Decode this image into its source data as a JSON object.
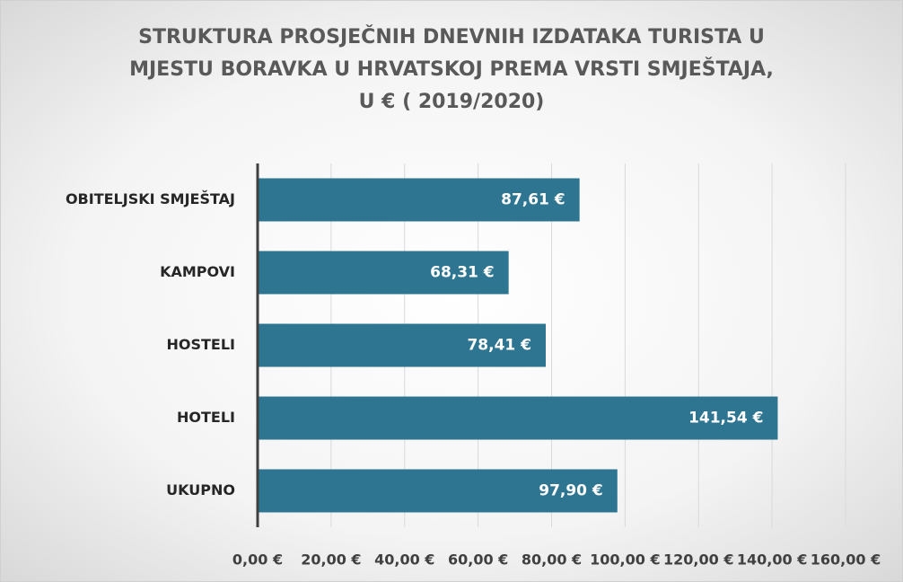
{
  "chart_data": {
    "type": "barh",
    "title": [
      "STRUKTURA PROSJEČNIH DNEVNIH IZDATAKA TURISTA U",
      "MJESTU BORAVKA U HRVATSKOJ PREMA VRSTI SMJEŠTAJA,",
      "U € ( 2019/2020)"
    ],
    "categories": [
      "OBITELJSKI SMJEŠTAJ",
      "KAMPOVI",
      "HOSTELI",
      "HOTELI",
      "UKUPNO"
    ],
    "values": [
      87.61,
      68.31,
      78.41,
      141.54,
      97.9
    ],
    "value_labels": [
      "87,61 €",
      "68,31 €",
      "78,41 €",
      "141,54 €",
      "97,90 €"
    ],
    "color": "#2e7591",
    "xlim": [
      0,
      160
    ],
    "xticks": [
      {
        "value": 0,
        "label": "0,00 €"
      },
      {
        "value": 20,
        "label": "20,00 €"
      },
      {
        "value": 40,
        "label": "40,00 €"
      },
      {
        "value": 60,
        "label": "60,00 €"
      },
      {
        "value": 80,
        "label": "80,00 €"
      },
      {
        "value": 100,
        "label": "100,00 €"
      },
      {
        "value": 120,
        "label": "120,00 €"
      },
      {
        "value": 140,
        "label": "140,00 €"
      },
      {
        "value": 160,
        "label": "160,00 €"
      }
    ],
    "grid": true
  }
}
